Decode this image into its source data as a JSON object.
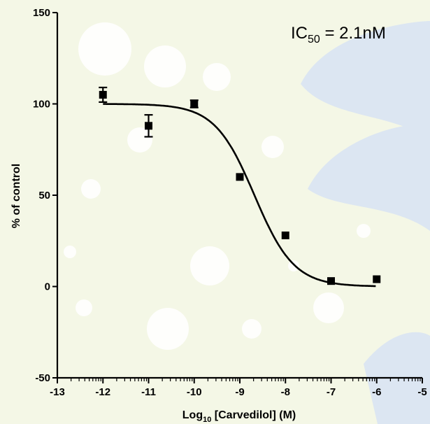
{
  "chart_data": {
    "type": "scatter",
    "title": "",
    "annotation": {
      "prefix": "IC",
      "subscript": "50",
      "suffix": " = 2.1nM"
    },
    "xlabel": {
      "prefix": "Log",
      "subscript": "10",
      "suffix": " [Carvedilol] (M)"
    },
    "ylabel": "% of control",
    "xlim": [
      -13,
      -5
    ],
    "ylim": [
      -50,
      150
    ],
    "x_ticks": [
      -13,
      -12,
      -11,
      -10,
      -9,
      -8,
      -7,
      -6,
      -5
    ],
    "x_tick_labels": [
      "-13",
      "-12",
      "-11",
      "-10",
      "-9",
      "-8",
      "-7",
      "-6",
      "-5"
    ],
    "y_ticks": [
      -50,
      0,
      50,
      100,
      150
    ],
    "y_tick_labels": [
      "-50",
      "0",
      "50",
      "100",
      "150"
    ],
    "grid": false,
    "legend": "none",
    "series": [
      {
        "x": [
          -12,
          -11,
          -10,
          -9,
          -8,
          -7,
          -6
        ],
        "y": [
          105,
          88,
          100,
          60,
          28,
          3,
          4
        ],
        "error": [
          4,
          6,
          2,
          1,
          1,
          1,
          1
        ]
      }
    ],
    "fit_curve": {
      "model": "sigmoidal dose-response",
      "top": 100,
      "bottom": 0,
      "log_ic50": -8.68,
      "hill_slope": -1
    },
    "colors": {
      "marks": "#000000",
      "background": "#f4f7e6",
      "decoration": "#ffffff",
      "decoration_blue": "#dce6f2"
    }
  }
}
